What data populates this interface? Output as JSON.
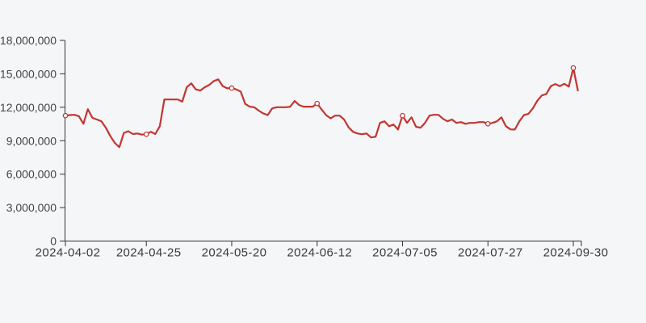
{
  "figure": {
    "background": "#f5f6f7",
    "axis_color": "#333333",
    "tick_label_color": "#444444"
  },
  "chart_data": {
    "type": "line",
    "title": "",
    "xlabel": "",
    "ylabel": "",
    "legend": null,
    "grid": false,
    "series_color": "#c23531",
    "marker_fill": "#ffffff",
    "ylim": [
      0,
      18000000
    ],
    "y_ticks": [
      {
        "value": 0,
        "label": "0"
      },
      {
        "value": 3000000,
        "label": "3,000,000"
      },
      {
        "value": 6000000,
        "label": "6,000,000"
      },
      {
        "value": 9000000,
        "label": "9,000,000"
      },
      {
        "value": 12000000,
        "label": "12,000,000"
      },
      {
        "value": 15000000,
        "label": "15,000,000"
      },
      {
        "value": 18000000,
        "label": "18,000,000"
      }
    ],
    "x_tick_labels": [
      "2024-04-02",
      "2024-04-25",
      "2024-05-20",
      "2024-06-12",
      "2024-07-05",
      "2024-07-27",
      "2024-09-30"
    ],
    "x_tick_indices": [
      0,
      18,
      37,
      56,
      75,
      94,
      113
    ],
    "marker_indices": [
      0,
      18,
      37,
      56,
      75,
      94,
      113
    ],
    "marker_values": [
      11250000,
      9580000,
      13720000,
      12340000,
      11250000,
      10520000,
      15530000
    ],
    "values": [
      11250000,
      11300000,
      11320000,
      11200000,
      10520000,
      11830000,
      11050000,
      10900000,
      10750000,
      10160000,
      9400000,
      8800000,
      8420000,
      9700000,
      9850000,
      9600000,
      9650000,
      9550000,
      9580000,
      9800000,
      9600000,
      10300000,
      12700000,
      12700000,
      12700000,
      12700000,
      12500000,
      13800000,
      14150000,
      13600000,
      13500000,
      13800000,
      14000000,
      14350000,
      14500000,
      13900000,
      13700000,
      13720000,
      13600000,
      13400000,
      12300000,
      12050000,
      12000000,
      11700000,
      11450000,
      11300000,
      11900000,
      12000000,
      12000000,
      12000000,
      12050000,
      12560000,
      12200000,
      12050000,
      12050000,
      12050000,
      12340000,
      11800000,
      11300000,
      11000000,
      11250000,
      11250000,
      10900000,
      10200000,
      9800000,
      9650000,
      9580000,
      9650000,
      9290000,
      9350000,
      10600000,
      10740000,
      10300000,
      10450000,
      10000000,
      11250000,
      10600000,
      11100000,
      10250000,
      10160000,
      10600000,
      11250000,
      11320000,
      11320000,
      10960000,
      10740000,
      10900000,
      10600000,
      10670000,
      10520000,
      10600000,
      10600000,
      10670000,
      10670000,
      10520000,
      10600000,
      10740000,
      11100000,
      10300000,
      10020000,
      10000000,
      10740000,
      11300000,
      11400000,
      11900000,
      12600000,
      13060000,
      13200000,
      13900000,
      14080000,
      13900000,
      14100000,
      13850000,
      15530000,
      13500000
    ]
  }
}
